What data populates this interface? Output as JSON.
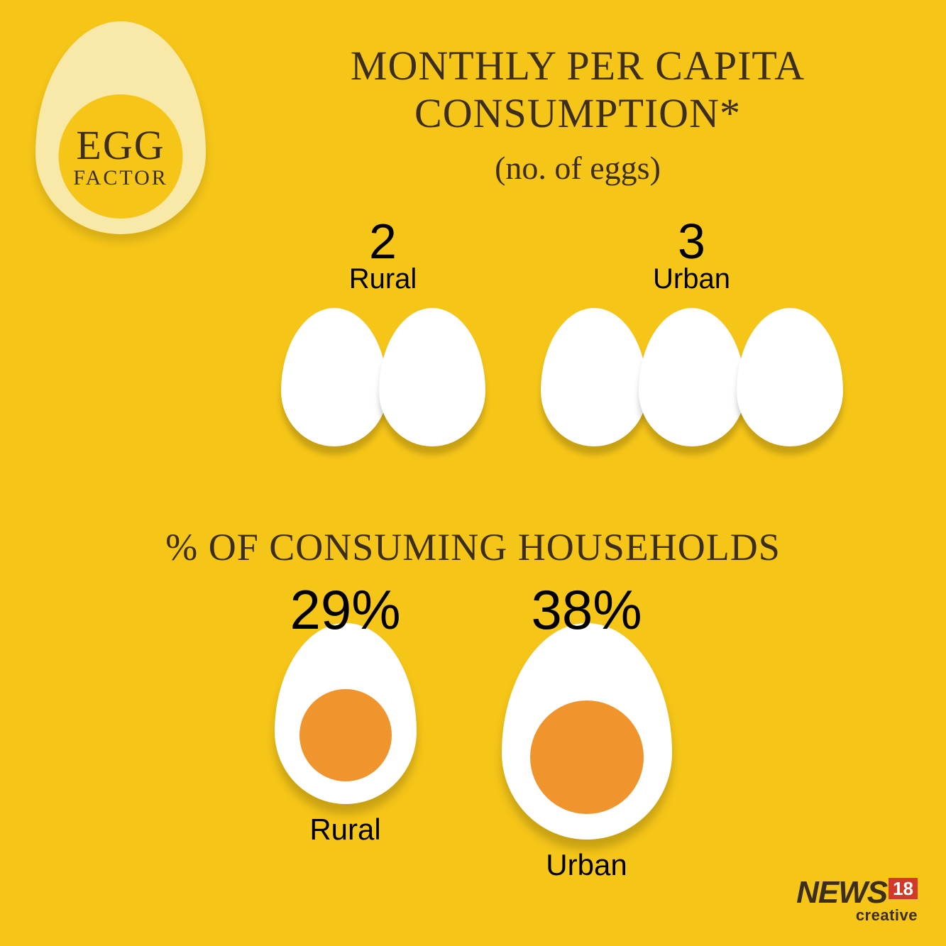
{
  "logo": {
    "line1": "EGG",
    "line2": "FACTOR",
    "egg_white_color": "#f9e9a8",
    "yolk_color": "#f5c518",
    "text_color": "#3d2e1b"
  },
  "background_color": "#f5c518",
  "title": "MONTHLY PER CAPITA CONSUMPTION*",
  "subtitle": "(no. of eggs)",
  "title_color": "#3d2e1b",
  "title_fontsize": 58,
  "consumption": {
    "rural": {
      "count": "2",
      "label": "Rural",
      "eggs": 2
    },
    "urban": {
      "count": "3",
      "label": "Urban",
      "eggs": 3
    },
    "egg_color": "#ffffff",
    "number_color": "#000000",
    "label_color": "#000000"
  },
  "section2_title": "% OF CONSUMING HOUSEHOLDS",
  "households": {
    "rural": {
      "percent": "29%",
      "label": "Rural",
      "size": "small"
    },
    "urban": {
      "percent": "38%",
      "label": "Urban",
      "size": "big"
    },
    "egg_white_color": "#ffffff",
    "yolk_color": "#f0942d",
    "percent_color": "#000000"
  },
  "footer": {
    "brand": "NEWS",
    "number": "18",
    "sub": "creative",
    "box_color": "#d13a2a",
    "text_color": "#3d2e1b"
  }
}
